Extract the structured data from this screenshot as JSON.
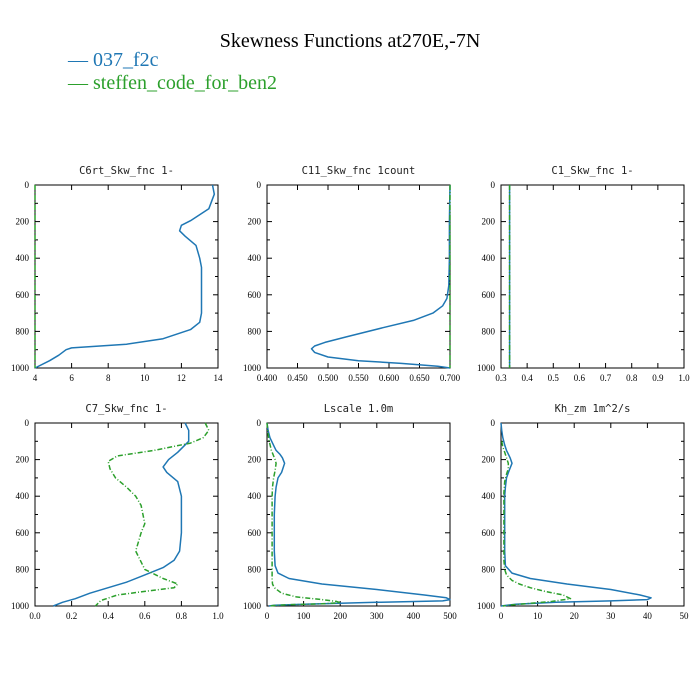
{
  "title": "Skewness Functions at270E,-7N",
  "legend": [
    {
      "name": "037_f2c",
      "color": "#1f77b4"
    },
    {
      "name": "steffen_code_for_ben2",
      "color": "#2ca02c"
    }
  ],
  "chart_data": [
    {
      "type": "line",
      "title": "C6rt_Skw_fnc  1-",
      "xlim": [
        4,
        14
      ],
      "ylim": [
        1000,
        0
      ],
      "y_inverted": true,
      "xticks": [
        "4",
        "6",
        "8",
        "10",
        "12",
        "14"
      ],
      "yticks": [
        "0",
        "200",
        "400",
        "600",
        "800",
        "1000"
      ],
      "series": [
        {
          "name": "037_f2c",
          "color": "#1f77b4",
          "x": [
            13.7,
            13.8,
            13.5,
            12.5,
            12.0,
            11.9,
            12.2,
            12.8,
            13.0,
            13.1,
            13.1,
            13.1,
            13.1,
            13.0,
            12.5,
            11.0,
            9.0,
            6.0,
            5.7,
            5.3,
            4.8,
            4.0
          ],
          "y": [
            0,
            50,
            130,
            195,
            220,
            250,
            280,
            330,
            400,
            450,
            550,
            650,
            700,
            750,
            790,
            840,
            870,
            890,
            900,
            930,
            960,
            1000
          ]
        },
        {
          "name": "steffen_code_for_ben2",
          "color": "#2ca02c",
          "dashed": true,
          "x": [
            4.0,
            4.0
          ],
          "y": [
            0,
            1000
          ]
        }
      ]
    },
    {
      "type": "line",
      "title": "C11_Skw_fnc  1count",
      "xlim": [
        0.4,
        0.7
      ],
      "ylim": [
        1000,
        0
      ],
      "y_inverted": true,
      "xticks": [
        "0.400",
        "0.450",
        "0.500",
        "0.550",
        "0.600",
        "0.650",
        "0.700"
      ],
      "yticks": [
        "0",
        "200",
        "400",
        "600",
        "800",
        "1000"
      ],
      "series": [
        {
          "name": "037_f2c",
          "color": "#1f77b4",
          "x": [
            0.7,
            0.699,
            0.699,
            0.698,
            0.695,
            0.688,
            0.672,
            0.64,
            0.59,
            0.53,
            0.495,
            0.478,
            0.473,
            0.478,
            0.5,
            0.55,
            0.62,
            0.68,
            0.7
          ],
          "y": [
            0,
            200,
            400,
            550,
            620,
            660,
            700,
            740,
            780,
            830,
            860,
            880,
            895,
            915,
            940,
            960,
            975,
            990,
            1000
          ]
        },
        {
          "name": "steffen_code_for_ben2",
          "color": "#2ca02c",
          "dashed": true,
          "x": [
            0.7,
            0.7
          ],
          "y": [
            0,
            1000
          ]
        }
      ]
    },
    {
      "type": "line",
      "title": "C1_Skw_fnc  1-",
      "xlim": [
        0.3,
        1.0
      ],
      "ylim": [
        1000,
        0
      ],
      "y_inverted": true,
      "xticks": [
        "0.3",
        "0.4",
        "0.5",
        "0.6",
        "0.7",
        "0.8",
        "0.9",
        "1.0"
      ],
      "yticks": [
        "0",
        "200",
        "400",
        "600",
        "800",
        "1000"
      ],
      "series": [
        {
          "name": "037_f2c",
          "color": "#1f77b4",
          "x": [
            0.333,
            0.333
          ],
          "y": [
            0,
            1000
          ]
        },
        {
          "name": "steffen_code_for_ben2",
          "color": "#2ca02c",
          "dashed": true,
          "x": [
            0.333,
            0.333
          ],
          "y": [
            0,
            1000
          ]
        }
      ]
    },
    {
      "type": "line",
      "title": "C7_Skw_fnc  1-",
      "xlim": [
        0.0,
        1.0
      ],
      "ylim": [
        1000,
        0
      ],
      "y_inverted": true,
      "xticks": [
        "0.0",
        "0.2",
        "0.4",
        "0.6",
        "0.8",
        "1.0"
      ],
      "yticks": [
        "0",
        "200",
        "400",
        "600",
        "800",
        "1000"
      ],
      "series": [
        {
          "name": "037_f2c",
          "color": "#1f77b4",
          "x": [
            0.82,
            0.84,
            0.84,
            0.78,
            0.73,
            0.7,
            0.72,
            0.78,
            0.8,
            0.8,
            0.8,
            0.79,
            0.76,
            0.7,
            0.6,
            0.5,
            0.4,
            0.3,
            0.22,
            0.15,
            0.1
          ],
          "y": [
            0,
            40,
            100,
            160,
            200,
            240,
            270,
            320,
            400,
            500,
            600,
            700,
            750,
            790,
            830,
            870,
            900,
            930,
            960,
            980,
            1000
          ]
        },
        {
          "name": "steffen_code_for_ben2",
          "color": "#2ca02c",
          "dashed": true,
          "x": [
            0.93,
            0.95,
            0.92,
            0.85,
            0.65,
            0.45,
            0.4,
            0.41,
            0.44,
            0.5,
            0.55,
            0.58,
            0.6,
            0.58,
            0.55,
            0.6,
            0.7,
            0.78,
            0.76,
            0.6,
            0.45,
            0.36,
            0.33
          ],
          "y": [
            0,
            40,
            80,
            110,
            150,
            180,
            210,
            250,
            300,
            350,
            400,
            450,
            550,
            600,
            700,
            800,
            850,
            880,
            900,
            920,
            940,
            970,
            1000
          ]
        }
      ]
    },
    {
      "type": "line",
      "title": "Lscale  1.0m",
      "xlim": [
        0,
        500
      ],
      "ylim": [
        1000,
        0
      ],
      "y_inverted": true,
      "xticks": [
        "0",
        "100",
        "200",
        "300",
        "400",
        "500"
      ],
      "yticks": [
        "0",
        "200",
        "400",
        "600",
        "800",
        "1000"
      ],
      "series": [
        {
          "name": "037_f2c",
          "color": "#1f77b4",
          "x": [
            0,
            3,
            8,
            20,
            25,
            35,
            42,
            48,
            40,
            30,
            25,
            22,
            20,
            20,
            20,
            22,
            30,
            60,
            150,
            300,
            430,
            490,
            500,
            480,
            300,
            100,
            20,
            5
          ],
          "y": [
            0,
            40,
            80,
            130,
            150,
            170,
            190,
            220,
            270,
            300,
            350,
            400,
            500,
            600,
            700,
            780,
            820,
            850,
            880,
            910,
            940,
            955,
            965,
            972,
            980,
            990,
            996,
            1000
          ]
        },
        {
          "name": "steffen_code_for_ben2",
          "color": "#2ca02c",
          "dashed": true,
          "x": [
            0,
            2,
            5,
            12,
            18,
            22,
            25,
            22,
            18,
            15,
            14,
            14,
            14,
            14,
            14,
            14,
            15,
            20,
            40,
            80,
            150,
            190,
            200,
            150,
            60,
            20,
            5
          ],
          "y": [
            0,
            40,
            90,
            150,
            180,
            200,
            220,
            260,
            300,
            350,
            400,
            500,
            600,
            700,
            800,
            850,
            880,
            900,
            930,
            950,
            965,
            975,
            982,
            988,
            993,
            997,
            1000
          ]
        }
      ]
    },
    {
      "type": "line",
      "title": "Kh_zm  1m^2/s",
      "xlim": [
        0,
        50
      ],
      "ylim": [
        1000,
        0
      ],
      "y_inverted": true,
      "xticks": [
        "0",
        "10",
        "20",
        "30",
        "40",
        "50"
      ],
      "yticks": [
        "0",
        "200",
        "400",
        "600",
        "800",
        "1000"
      ],
      "series": [
        {
          "name": "037_f2c",
          "color": "#1f77b4",
          "x": [
            0,
            0.2,
            0.5,
            1.0,
            1.5,
            2.0,
            2.5,
            3.0,
            2.2,
            1.5,
            1.2,
            1.0,
            1.0,
            1.0,
            1.0,
            1.2,
            3.0,
            8.0,
            18,
            30,
            38,
            41,
            40,
            30,
            15,
            4,
            0
          ],
          "y": [
            0,
            40,
            80,
            120,
            150,
            170,
            190,
            220,
            260,
            300,
            350,
            400,
            500,
            600,
            700,
            780,
            820,
            850,
            880,
            910,
            940,
            955,
            965,
            972,
            980,
            990,
            1000
          ]
        },
        {
          "name": "steffen_code_for_ben2",
          "color": "#2ca02c",
          "dashed": true,
          "x": [
            0.2,
            0.5,
            1.0,
            1.5,
            2.0,
            2.0,
            1.5,
            1.0,
            0.8,
            0.8,
            0.8,
            0.8,
            0.8,
            1.0,
            1.5,
            3.0,
            5.0,
            8.0,
            12,
            17,
            19,
            14,
            8,
            3,
            0.5
          ],
          "y": [
            100,
            130,
            160,
            190,
            220,
            250,
            280,
            320,
            380,
            450,
            550,
            650,
            750,
            800,
            830,
            860,
            880,
            900,
            920,
            940,
            960,
            975,
            985,
            994,
            1000
          ]
        }
      ]
    }
  ]
}
